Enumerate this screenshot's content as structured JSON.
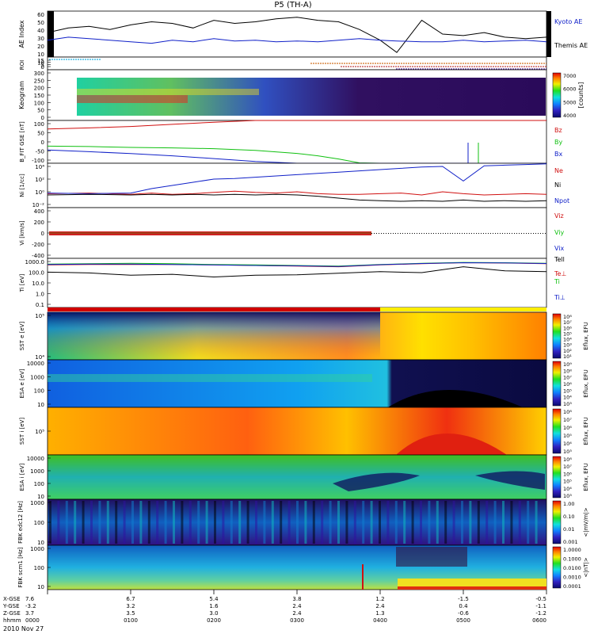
{
  "title": "P5 (TH-A)",
  "date_label": "2010 Nov 27",
  "colors": {
    "blue": "#1020c8",
    "red": "#d01010",
    "green": "#10c010",
    "black": "#000000",
    "yellow_bar": "#ffee00",
    "red_bar": "#d00000"
  },
  "ephem": {
    "row_labels": [
      "X-GSE",
      "Y-GSE",
      "Z-GSE",
      "hhmm"
    ],
    "columns": [
      {
        "v": [
          "7.6",
          "-3.2",
          "3.7",
          "0000"
        ]
      },
      {
        "v": [
          "6.7",
          "3.2",
          "3.5",
          "0100"
        ]
      },
      {
        "v": [
          "5.4",
          "1.6",
          "3.0",
          "0200"
        ]
      },
      {
        "v": [
          "3.8",
          "2.4",
          "2.4",
          "0300"
        ]
      },
      {
        "v": [
          "1.2",
          "2.4",
          "1.3",
          "0400"
        ]
      },
      {
        "v": [
          "-1.5",
          "0.4",
          "-0.6",
          "0500"
        ]
      },
      {
        "v": [
          "-0.5",
          "-1.1",
          "-1.2",
          "0600"
        ]
      }
    ]
  },
  "chart_data": [
    {
      "type": "line",
      "panel": "ae",
      "ylabel": "AE Index",
      "ylim": [
        0,
        60
      ],
      "yticks": [
        "60",
        "50",
        "40",
        "30",
        "20",
        "10"
      ],
      "x_hours": [
        0,
        0.25,
        0.5,
        0.75,
        1,
        1.25,
        1.5,
        1.75,
        2,
        2.25,
        2.5,
        2.75,
        3,
        3.25,
        3.5,
        3.75,
        4,
        4.2,
        4.5,
        4.75,
        5,
        5.25,
        5.5,
        5.75,
        6
      ],
      "series": [
        {
          "name": "Kyoto AE",
          "color": "#000000",
          "values": [
            32,
            38,
            40,
            36,
            42,
            46,
            44,
            38,
            48,
            44,
            46,
            50,
            52,
            48,
            46,
            36,
            22,
            6,
            48,
            30,
            28,
            32,
            26,
            24,
            26
          ]
        },
        {
          "name": "Themis AE",
          "color": "#1020c8",
          "values": [
            22,
            26,
            24,
            22,
            20,
            18,
            22,
            20,
            24,
            21,
            22,
            20,
            21,
            20,
            22,
            24,
            22,
            21,
            20,
            20,
            22,
            20,
            21,
            22,
            20
          ]
        }
      ]
    },
    {
      "type": "line",
      "panel": "roi",
      "ylabel": "ROI",
      "yticks": [
        "15",
        "10",
        "5",
        "0"
      ]
    },
    {
      "type": "heatmap",
      "panel": "kgram",
      "ylabel": "Keogram",
      "ylim": [
        0,
        300
      ],
      "yticks": [
        "300",
        "250",
        "200",
        "150",
        "100",
        "50",
        "0"
      ],
      "colorbar": {
        "label": "[counts]",
        "ticks": [
          "7000",
          "6000",
          "5000",
          "4000"
        ]
      }
    },
    {
      "type": "line",
      "panel": "bfit",
      "ylabel": "B_FIT GSE [nT]",
      "ylim": [
        -100,
        100
      ],
      "yticks": [
        "100",
        "50",
        "0",
        "-50",
        "-100"
      ],
      "x_hours": [
        0,
        0.5,
        1,
        1.5,
        2,
        2.5,
        3,
        3.25,
        3.5,
        3.75,
        4,
        4.25,
        4.5,
        4.75,
        5,
        5.25,
        5.5,
        5.75,
        6
      ],
      "series": [
        {
          "name": "Bz",
          "color": "#d01010",
          "values": [
            60,
            65,
            72,
            82,
            92,
            100,
            100,
            100,
            100,
            100,
            100,
            100,
            100,
            100,
            100,
            100,
            100,
            100,
            100
          ]
        },
        {
          "name": "By",
          "color": "#10c010",
          "values": [
            -20,
            -22,
            -26,
            -28,
            -32,
            -40,
            -54,
            -65,
            -80,
            -98,
            -100,
            -100,
            -100,
            -100,
            -100,
            -100,
            -100,
            -100,
            -100
          ]
        },
        {
          "name": "Bx",
          "color": "#1020c8",
          "values": [
            -38,
            -46,
            -55,
            -65,
            -78,
            -92,
            -100,
            -100,
            -100,
            -100,
            -100,
            -100,
            -100,
            -100,
            -100,
            -100,
            -100,
            -100,
            -100
          ]
        }
      ]
    },
    {
      "type": "line",
      "panel": "ni",
      "ylabel": "Ni [1/cc]",
      "yticks": [
        "10⁴",
        "10²",
        "10⁰",
        "10⁻²"
      ],
      "x_hours": [
        0,
        0.5,
        1,
        1.25,
        1.5,
        1.75,
        2,
        2.25,
        2.5,
        2.75,
        3,
        3.25,
        3.5,
        3.75,
        4,
        4.25,
        4.5,
        4.75,
        5,
        5.25,
        5.5,
        5.75,
        6
      ],
      "series": [
        {
          "name": "Ne",
          "color": "#d01010",
          "values": [
            0.2,
            0.3,
            0.1,
            0.3,
            0.1,
            0.2,
            0.4,
            0.6,
            0.4,
            0.3,
            0.5,
            0.2,
            0.1,
            0.1,
            0.2,
            0.3,
            0.0,
            0.5,
            0.2,
            0.0,
            0.1,
            0.2,
            0.1
          ]
        },
        {
          "name": "Ni",
          "color": "#1020c8",
          "values": [
            0.3,
            0.2,
            0.3,
            1.0,
            1.5,
            2.0,
            2.5,
            2.6,
            2.8,
            3.0,
            3.2,
            3.4,
            3.6,
            3.8,
            4.0,
            4.2,
            4.4,
            4.5,
            2.2,
            4.6,
            4.7,
            4.8,
            4.9
          ]
        },
        {
          "name": "Npot",
          "color": "#000000",
          "values": [
            0.0,
            0.1,
            0.0,
            0.1,
            0.0,
            0.1,
            0.0,
            0.1,
            0.0,
            0.1,
            0.0,
            -0.2,
            -0.5,
            -0.8,
            -0.9,
            -1.0,
            -0.9,
            -1.0,
            -0.8,
            -1.0,
            -0.9,
            -1.0,
            -0.9
          ]
        }
      ]
    },
    {
      "type": "line",
      "panel": "vi",
      "ylabel": "Vi [km/s]",
      "ylim": [
        -400,
        400
      ],
      "yticks": [
        "400",
        "200",
        "0",
        "-200",
        "-400"
      ],
      "legend": [
        "Viz",
        "Viy",
        "Vix"
      ]
    },
    {
      "type": "line",
      "panel": "ti",
      "ylabel": "Ti [eV]",
      "yticks": [
        "1000.0",
        "100.0",
        "10.0",
        "1.0",
        "0.1"
      ],
      "x_hours": [
        0,
        0.5,
        1,
        1.5,
        2,
        2.5,
        3,
        3.5,
        4,
        4.5,
        5,
        5.5,
        6
      ],
      "series": [
        {
          "name": "Tell",
          "color": "#000000",
          "values": [
            180,
            150,
            90,
            110,
            60,
            90,
            100,
            140,
            200,
            160,
            600,
            240,
            200
          ]
        },
        {
          "name": "Te⊥",
          "color": "#d01010",
          "values": [
            900,
            1000,
            1000,
            1000,
            900,
            800,
            700,
            600,
            900,
            1200,
            1500,
            1400,
            1200
          ]
        },
        {
          "name": "Ti",
          "color": "#10c010",
          "values": [
            1100,
            1200,
            1300,
            1200,
            1000,
            900,
            800,
            700,
            1000,
            1300,
            1600,
            1500,
            1300
          ]
        },
        {
          "name": "Ti⊥",
          "color": "#1020c8",
          "values": [
            1000,
            1100,
            1100,
            1000,
            900,
            800,
            750,
            650,
            950,
            1250,
            1500,
            1450,
            1250
          ]
        }
      ]
    },
    {
      "type": "heatmap",
      "panel": "sst_e",
      "ylabel": "SST e [eV]",
      "yticks": [
        "10⁵",
        "10⁴"
      ],
      "colorbar": {
        "label": "Eflux, EFU",
        "ticks": [
          "10⁸",
          "10⁷",
          "10⁶",
          "10⁵",
          "10⁴",
          "10³",
          "10²",
          "10¹"
        ]
      }
    },
    {
      "type": "heatmap",
      "panel": "esa_e",
      "ylabel": "ESA e [eV]",
      "yticks": [
        "10000",
        "1000",
        "100",
        "10"
      ],
      "colorbar": {
        "label": "Eflux, EFU",
        "ticks": [
          "10⁹",
          "10⁸",
          "10⁷",
          "10⁶",
          "10⁵",
          "10⁴",
          "10³"
        ]
      }
    },
    {
      "type": "heatmap",
      "panel": "sst_i",
      "ylabel": "SST i [eV]",
      "yticks": [
        "10⁵"
      ],
      "colorbar": {
        "label": "Eflux, EFU",
        "ticks": [
          "10⁸",
          "10⁷",
          "10⁶",
          "10⁵",
          "10⁴",
          "10³"
        ]
      }
    },
    {
      "type": "heatmap",
      "panel": "esa_i",
      "ylabel": "ESA i [eV]",
      "yticks": [
        "10000",
        "1000",
        "100",
        "10"
      ],
      "colorbar": {
        "label": "Eflux, EFU",
        "ticks": [
          "10⁸",
          "10⁷",
          "10⁶",
          "10⁵",
          "10⁴",
          "10³"
        ]
      }
    },
    {
      "type": "heatmap",
      "panel": "fbk_e",
      "ylabel": "FBK edc12 [Hz]",
      "yticks": [
        "1000",
        "100",
        "10"
      ],
      "colorbar": {
        "label": "<|mV/m|>",
        "ticks": [
          "1.00",
          "0.10",
          "0.01",
          "0.001"
        ]
      }
    },
    {
      "type": "heatmap",
      "panel": "fbk_b",
      "ylabel": "FBK scm1 [Hz]",
      "yticks": [
        "1000",
        "100",
        "10"
      ],
      "colorbar": {
        "label": "<|nT|>",
        "ticks": [
          "1.0000",
          "0.1000",
          "0.0100",
          "0.0010",
          "0.0001"
        ]
      }
    }
  ]
}
